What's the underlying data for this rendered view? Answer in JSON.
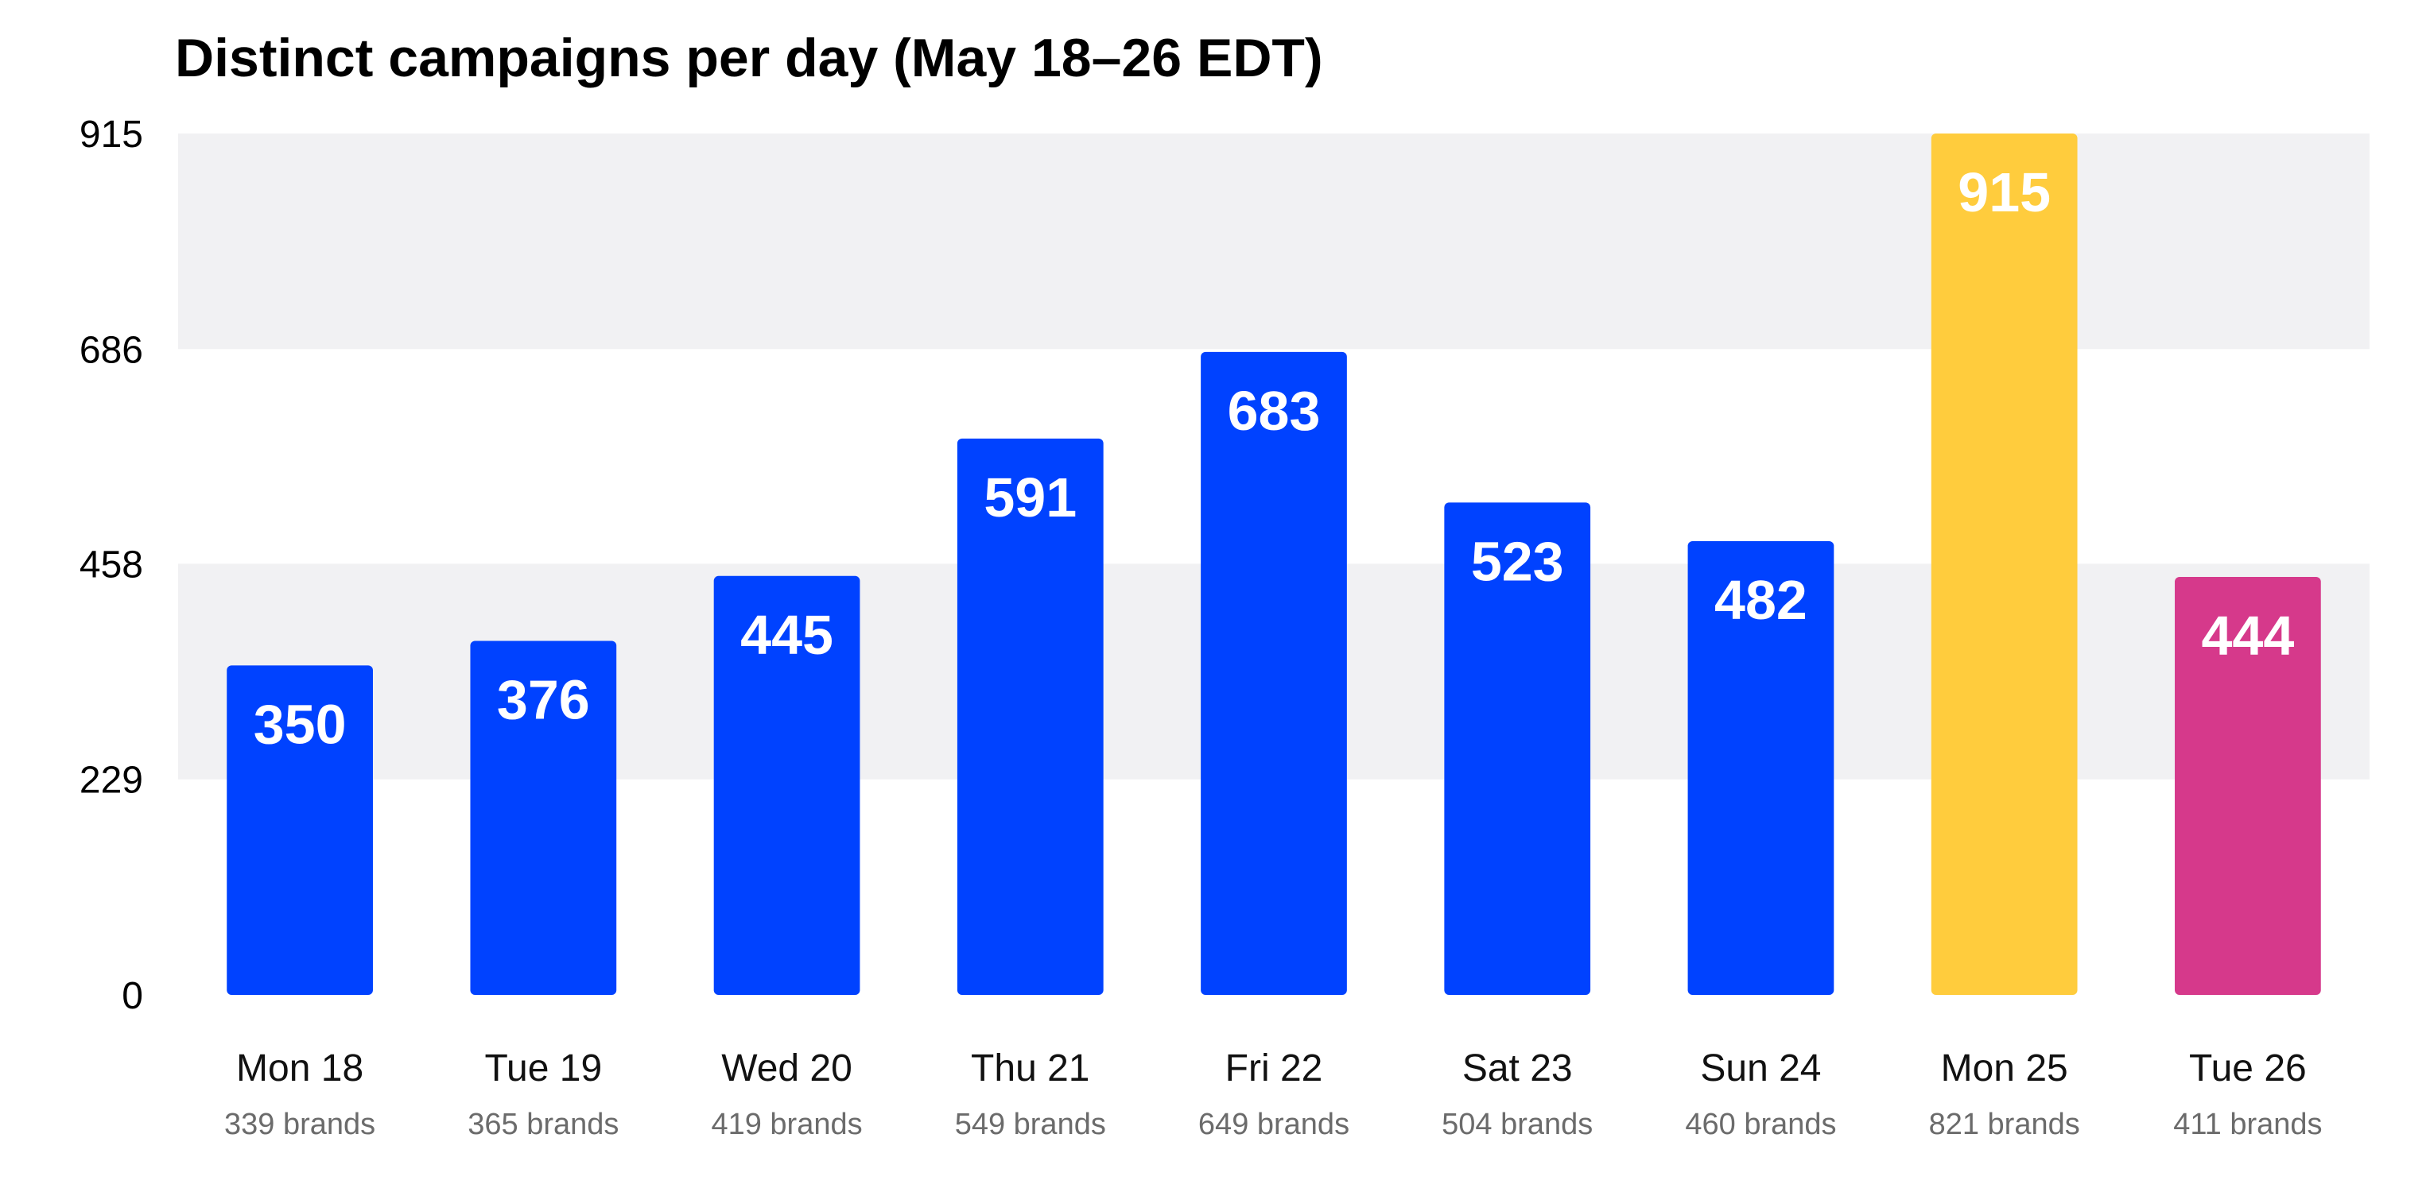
{
  "chart_data": {
    "type": "bar",
    "title": "Distinct campaigns per day (May 18–26 EDT)",
    "xlabel": "",
    "ylabel": "",
    "ylim": [
      0,
      915
    ],
    "yticks": [
      0,
      229,
      458,
      686,
      915
    ],
    "grid": "alternating horizontal bands",
    "categories": [
      "Mon 18",
      "Tue 19",
      "Wed 20",
      "Thu 21",
      "Fri 22",
      "Sat 23",
      "Sun 24",
      "Mon 25",
      "Tue 26"
    ],
    "values": [
      350,
      376,
      445,
      591,
      683,
      523,
      482,
      915,
      444
    ],
    "value_labels": [
      "350",
      "376",
      "445",
      "591",
      "683",
      "523",
      "482",
      "915",
      "444"
    ],
    "sublabels": [
      "339 brands",
      "365 brands",
      "419 brands",
      "549 brands",
      "649 brands",
      "504 brands",
      "460 brands",
      "821 brands",
      "411 brands"
    ],
    "colors": [
      "#0042ff",
      "#0042ff",
      "#0042ff",
      "#0042ff",
      "#0042ff",
      "#0042ff",
      "#0042ff",
      "#ffcc3d",
      "#d6398b"
    ],
    "band_color": "#f1f1f3"
  }
}
